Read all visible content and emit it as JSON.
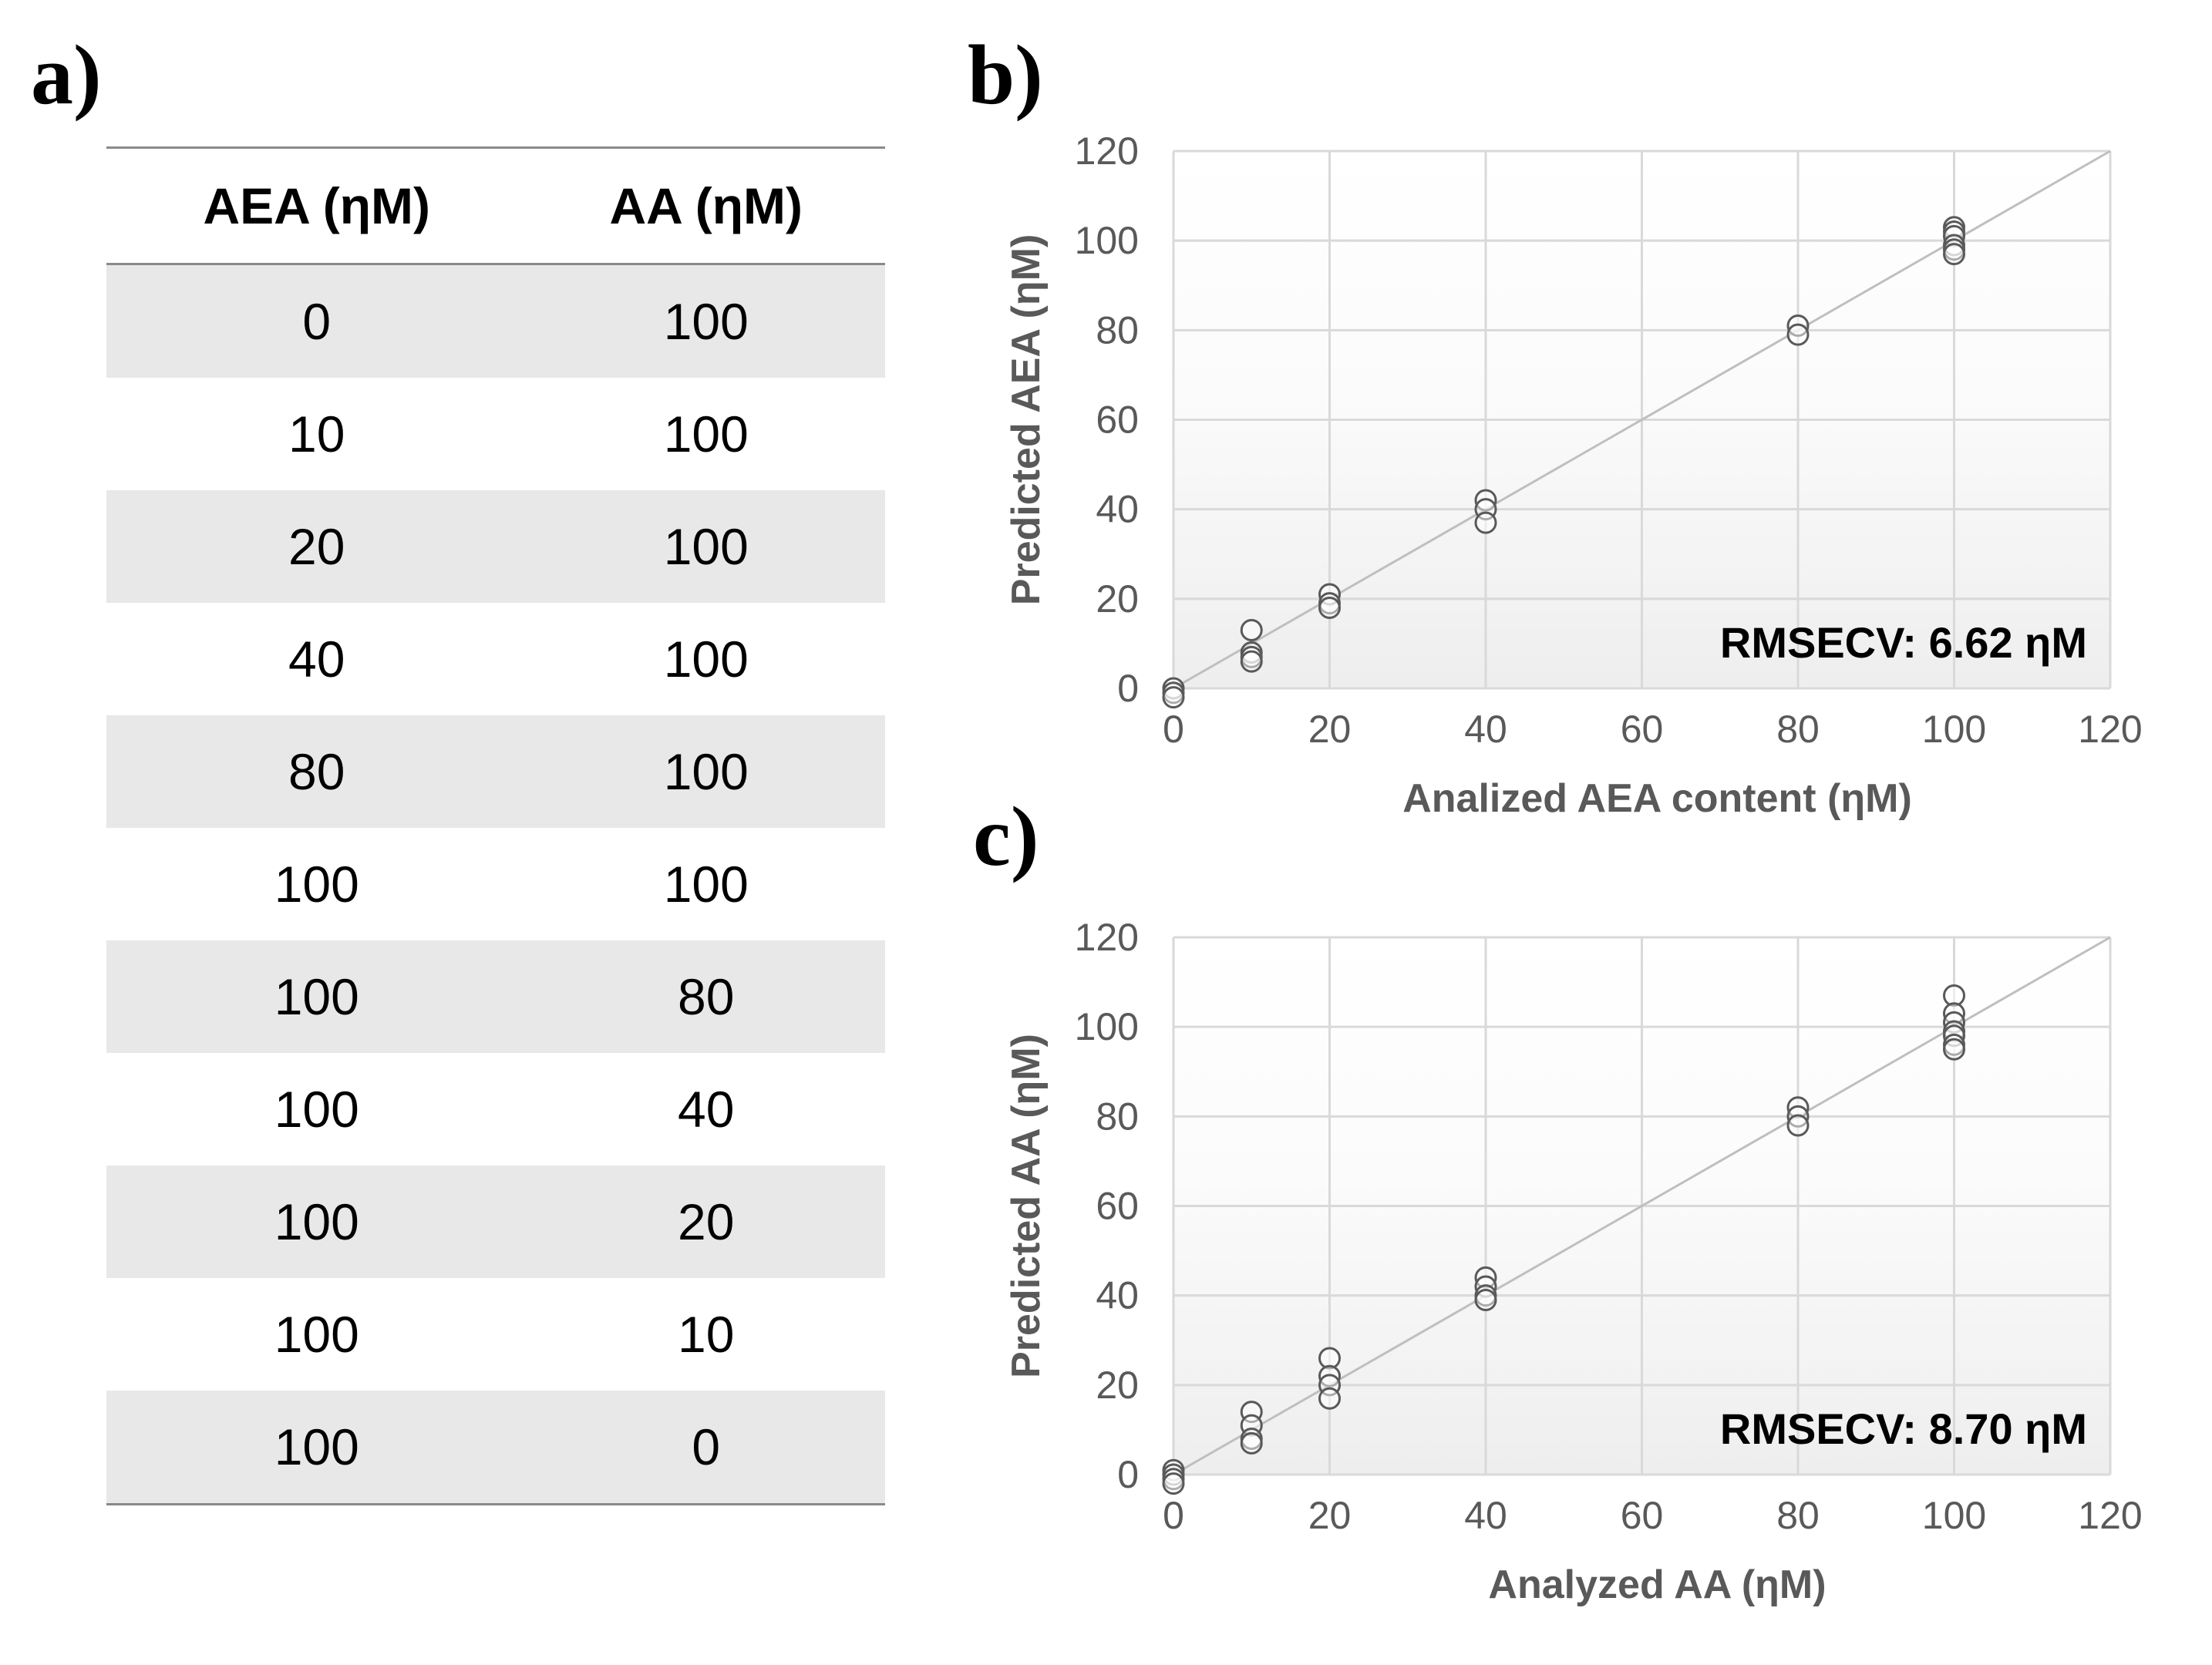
{
  "panels": {
    "a": "a)",
    "b": "b)",
    "c": "c)"
  },
  "table": {
    "headers": [
      "AEA (ηM)",
      "AA (ηM)"
    ],
    "rows": [
      [
        "0",
        "100"
      ],
      [
        "10",
        "100"
      ],
      [
        "20",
        "100"
      ],
      [
        "40",
        "100"
      ],
      [
        "80",
        "100"
      ],
      [
        "100",
        "100"
      ],
      [
        "100",
        "80"
      ],
      [
        "100",
        "40"
      ],
      [
        "100",
        "20"
      ],
      [
        "100",
        "10"
      ],
      [
        "100",
        "0"
      ]
    ]
  },
  "chart_data": [
    {
      "type": "scatter",
      "panel": "b",
      "xlabel": "Analized AEA content (ηM)",
      "ylabel": "Predicted AEA (ηM)",
      "xlim": [
        0,
        120
      ],
      "ylim": [
        0,
        120
      ],
      "xticks": [
        0,
        20,
        40,
        60,
        80,
        100,
        120
      ],
      "yticks": [
        0,
        20,
        40,
        60,
        80,
        100,
        120
      ],
      "grid": true,
      "reference_line": "y = x",
      "annotation": "RMSECV:  6.62 ηM",
      "points": [
        {
          "x": 0,
          "y": 0
        },
        {
          "x": 0,
          "y": -1
        },
        {
          "x": 0,
          "y": -2
        },
        {
          "x": 10,
          "y": 13
        },
        {
          "x": 10,
          "y": 8
        },
        {
          "x": 10,
          "y": 7
        },
        {
          "x": 10,
          "y": 6
        },
        {
          "x": 20,
          "y": 21
        },
        {
          "x": 20,
          "y": 19
        },
        {
          "x": 20,
          "y": 18
        },
        {
          "x": 40,
          "y": 42
        },
        {
          "x": 40,
          "y": 40
        },
        {
          "x": 40,
          "y": 37
        },
        {
          "x": 80,
          "y": 81
        },
        {
          "x": 80,
          "y": 79
        },
        {
          "x": 100,
          "y": 103
        },
        {
          "x": 100,
          "y": 102
        },
        {
          "x": 100,
          "y": 101
        },
        {
          "x": 100,
          "y": 99
        },
        {
          "x": 100,
          "y": 98
        },
        {
          "x": 100,
          "y": 97
        }
      ]
    },
    {
      "type": "scatter",
      "panel": "c",
      "xlabel": "Analyzed AA (ηM)",
      "ylabel": "Predicted AA (ηM)",
      "xlim": [
        0,
        120
      ],
      "ylim": [
        0,
        120
      ],
      "xticks": [
        0,
        20,
        40,
        60,
        80,
        100,
        120
      ],
      "yticks": [
        0,
        20,
        40,
        60,
        80,
        100,
        120
      ],
      "grid": true,
      "reference_line": "y = x",
      "annotation": "RMSECV:  8.70 ηM",
      "points": [
        {
          "x": 0,
          "y": 1
        },
        {
          "x": 0,
          "y": 0
        },
        {
          "x": 0,
          "y": -1
        },
        {
          "x": 0,
          "y": -2
        },
        {
          "x": 10,
          "y": 14
        },
        {
          "x": 10,
          "y": 11
        },
        {
          "x": 10,
          "y": 8
        },
        {
          "x": 10,
          "y": 7
        },
        {
          "x": 20,
          "y": 26
        },
        {
          "x": 20,
          "y": 22
        },
        {
          "x": 20,
          "y": 20
        },
        {
          "x": 20,
          "y": 17
        },
        {
          "x": 40,
          "y": 44
        },
        {
          "x": 40,
          "y": 42
        },
        {
          "x": 40,
          "y": 40
        },
        {
          "x": 40,
          "y": 39
        },
        {
          "x": 80,
          "y": 82
        },
        {
          "x": 80,
          "y": 80
        },
        {
          "x": 80,
          "y": 78
        },
        {
          "x": 100,
          "y": 107
        },
        {
          "x": 100,
          "y": 103
        },
        {
          "x": 100,
          "y": 101
        },
        {
          "x": 100,
          "y": 99
        },
        {
          "x": 100,
          "y": 98
        },
        {
          "x": 100,
          "y": 96
        },
        {
          "x": 100,
          "y": 95
        }
      ]
    }
  ]
}
